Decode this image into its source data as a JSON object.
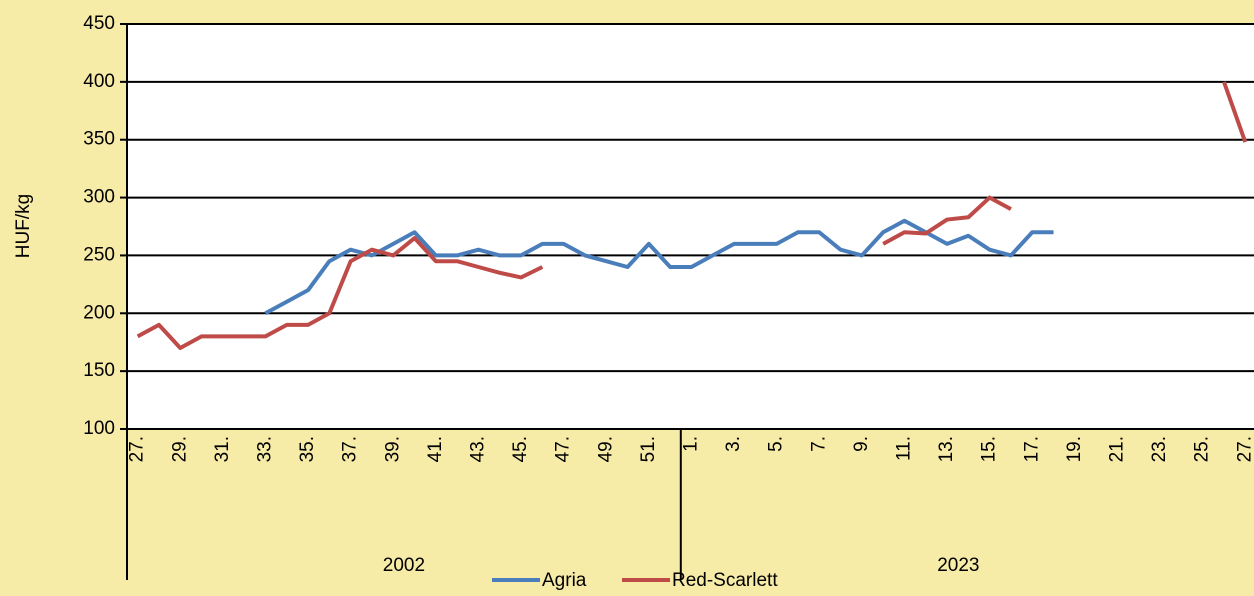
{
  "chart_data": {
    "type": "line",
    "y_label": "HUF/kg",
    "categories": [
      "27.",
      null,
      "29.",
      null,
      "31.",
      null,
      "33.",
      null,
      "35.",
      null,
      "37.",
      null,
      "39.",
      null,
      "41.",
      null,
      "43.",
      null,
      "45.",
      null,
      "47.",
      null,
      "49.",
      null,
      "51.",
      null,
      "1.",
      null,
      "3.",
      null,
      "5.",
      null,
      "7.",
      null,
      "9.",
      null,
      "11.",
      null,
      "13.",
      null,
      "15.",
      null,
      "17.",
      null,
      "19.",
      null,
      "21.",
      null,
      "23.",
      null,
      "25.",
      null,
      "27."
    ],
    "category_groups": [
      {
        "label": "2002",
        "size": 26
      },
      {
        "label": "2023",
        "size": 27
      }
    ],
    "series": [
      {
        "name": "Agria",
        "color": "#4a7ebb",
        "values": [
          null,
          null,
          null,
          null,
          null,
          null,
          200,
          210,
          220,
          245,
          255,
          250,
          260,
          270,
          250,
          250,
          255,
          250,
          250,
          260,
          260,
          250,
          245,
          240,
          260,
          240,
          240,
          250,
          260,
          260,
          260,
          270,
          270,
          255,
          250,
          270,
          280,
          270,
          260,
          267,
          255,
          250,
          270,
          270,
          null,
          null,
          null,
          null,
          null,
          null,
          null,
          null,
          null
        ]
      },
      {
        "name": "Red-Scarlett",
        "color": "#be4b48",
        "values": [
          180,
          190,
          170,
          180,
          180,
          180,
          180,
          190,
          190,
          200,
          245,
          255,
          250,
          265,
          245,
          245,
          240,
          235,
          231,
          240,
          null,
          null,
          null,
          null,
          null,
          null,
          null,
          null,
          null,
          null,
          null,
          null,
          null,
          null,
          null,
          260,
          270,
          269,
          281,
          283,
          300,
          290,
          null,
          null,
          null,
          null,
          null,
          null,
          null,
          null,
          null,
          400,
          348
        ]
      }
    ],
    "ylim": [
      100,
      450
    ],
    "yticks": [
      100,
      150,
      200,
      250,
      300,
      350,
      400,
      450
    ],
    "grid": true,
    "legend": "bottom"
  }
}
